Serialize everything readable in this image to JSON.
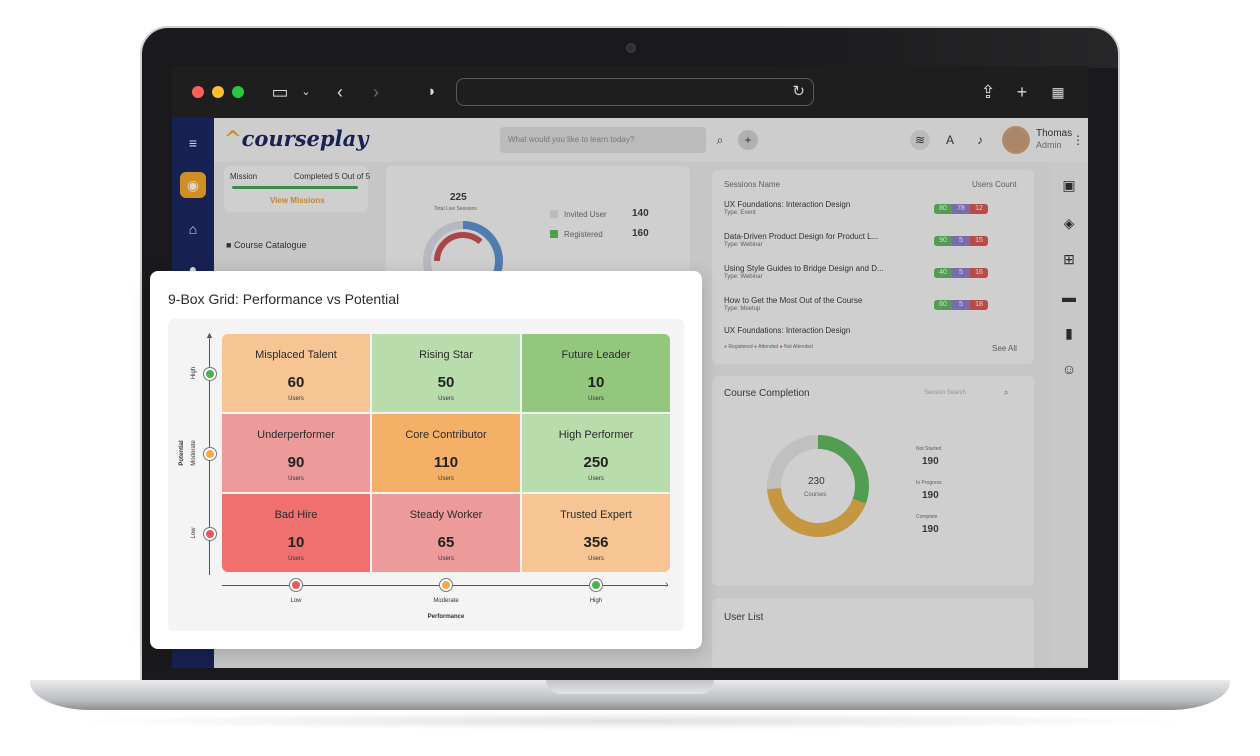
{
  "browser": {
    "colors": {
      "close": "#ff5f57",
      "minimize": "#febc2e",
      "maximize": "#28c840"
    }
  },
  "app": {
    "header": {
      "logo_text_a": "course",
      "logo_text_b": "play",
      "search_placeholder": "What would you like to learn today?",
      "user_name": "Thomas",
      "user_role": "Admin"
    },
    "mission": {
      "label": "Mission",
      "status": "Completed 5 Out of 5",
      "link": "View Missions"
    },
    "course_catalogue": "Course Catalogue",
    "donut_left": {
      "total": "225",
      "total_label": "Total Live Sessions",
      "legend": [
        {
          "label": "Invited User",
          "value": "140"
        },
        {
          "label": "Registered",
          "value": "160"
        }
      ]
    },
    "sessions": {
      "col_name": "Sessions Name",
      "col_count": "Users Count",
      "rows": [
        {
          "name": "UX Foundations: Interaction Design",
          "type": "Type: Event",
          "counts": [
            "80",
            "78",
            "12"
          ]
        },
        {
          "name": "Data-Driven Product Design for Product L...",
          "type": "Type: Webinar",
          "counts": [
            "90",
            "5",
            "15"
          ]
        },
        {
          "name": "Using Style Guides to Bridge Design and D...",
          "type": "Type: Webinar",
          "counts": [
            "40",
            "5",
            "16"
          ]
        },
        {
          "name": "How to Get the Most Out of the Course",
          "type": "Type: Meetup",
          "counts": [
            "60",
            "5",
            "18"
          ]
        },
        {
          "name": "UX Foundations: Interaction Design",
          "type": "",
          "counts": []
        }
      ],
      "legend": [
        "Registered",
        "Attended",
        "Not Attended"
      ],
      "see_all": "See All"
    },
    "completion": {
      "title": "Course Completion",
      "search": "Session Search",
      "center_value": "230",
      "center_label": "Courses",
      "legend": [
        {
          "label": "Not Started",
          "value": "190"
        },
        {
          "label": "In Progress",
          "value": "190"
        },
        {
          "label": "Complete",
          "value": "190"
        }
      ]
    },
    "user_list": {
      "title": "User List"
    }
  },
  "nine_box": {
    "title": "9-Box Grid: Performance vs Potential",
    "y_axis": {
      "title": "Potential",
      "levels": [
        "High",
        "Moderate",
        "Low"
      ]
    },
    "x_axis": {
      "title": "Performance",
      "levels": [
        "Low",
        "Moderate",
        "High"
      ]
    },
    "unit": "Users",
    "cells": [
      {
        "label": "Misplaced Talent",
        "value": "60",
        "color": "#f7c594"
      },
      {
        "label": "Rising Star",
        "value": "50",
        "color": "#b8dcab"
      },
      {
        "label": "Future Leader",
        "value": "10",
        "color": "#94c77e"
      },
      {
        "label": "Underperformer",
        "value": "90",
        "color": "#ec9a9a"
      },
      {
        "label": "Core Contributor",
        "value": "110",
        "color": "#f5b067"
      },
      {
        "label": "High Performer",
        "value": "250",
        "color": "#b8dcab"
      },
      {
        "label": "Bad Hire",
        "value": "10",
        "color": "#f07070"
      },
      {
        "label": "Steady Worker",
        "value": "65",
        "color": "#ec9a9a"
      },
      {
        "label": "Trusted Expert",
        "value": "356",
        "color": "#f7c594"
      }
    ],
    "marker_colors": {
      "high": "#4caf50",
      "moderate": "#f5a94e",
      "low": "#e85a5a"
    }
  }
}
